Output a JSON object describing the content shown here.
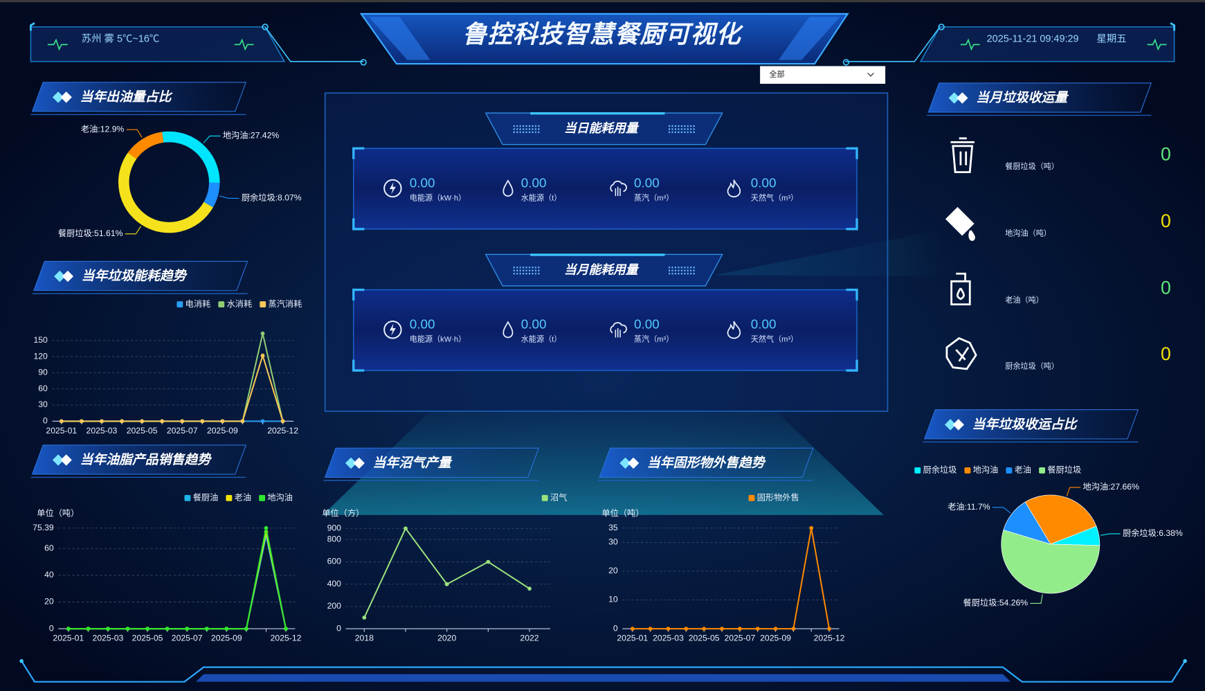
{
  "header": {
    "title": "鲁控科技智慧餐厨可视化",
    "weather": "苏州 雾 5℃~16℃",
    "datetime": "2025-11-21 09:49:29",
    "weekday": "星期五",
    "filter": "全部"
  },
  "energy": {
    "daily": {
      "title": "当日能耗用量",
      "items": [
        {
          "value": "0.00",
          "label": "电能源（kW·h）"
        },
        {
          "value": "0.00",
          "label": "水能源（t）"
        },
        {
          "value": "0.00",
          "label": "蒸汽（m³）"
        },
        {
          "value": "0.00",
          "label": "天然气（m³）"
        }
      ]
    },
    "monthly": {
      "title": "当月能耗用量",
      "items": [
        {
          "value": "0.00",
          "label": "电能源（kW·h）"
        },
        {
          "value": "0.00",
          "label": "水能源（t）"
        },
        {
          "value": "0.00",
          "label": "蒸汽（m³）"
        },
        {
          "value": "0.00",
          "label": "天然气（m³）"
        }
      ]
    }
  },
  "collection": {
    "title": "当月垃圾收运量",
    "items": [
      {
        "label": "餐厨垃圾（吨）",
        "value": 0
      },
      {
        "label": "地沟油（吨）",
        "value": 0
      },
      {
        "label": "老油（吨）",
        "value": 0
      },
      {
        "label": "厨余垃圾（吨）",
        "value": 0
      }
    ]
  },
  "chart_data": [
    {
      "type": "donut",
      "title": "当年出油量占比",
      "values": [
        27.42,
        8.07,
        51.61,
        12.9
      ],
      "value_labels": [
        "地沟油:27.42%",
        "厨余垃圾:8.07%",
        "餐厨垃圾:51.61%",
        "老油:12.9%"
      ],
      "colors": [
        "#00e5ff",
        "#1e8fff",
        "#f6e21c",
        "#ff8a00"
      ]
    },
    {
      "type": "line",
      "title": "当年垃圾能耗趋势",
      "categories": [
        "2025-01",
        null,
        "2025-03",
        null,
        "2025-05",
        null,
        "2025-07",
        null,
        "2025-09",
        null,
        null,
        "2025-12"
      ],
      "series": [
        {
          "name": "电消耗",
          "color": "#2a9df4",
          "values": [
            0,
            0,
            0,
            0,
            0,
            0,
            0,
            0,
            0,
            0,
            0,
            0
          ]
        },
        {
          "name": "水消耗",
          "color": "#91cc75",
          "values": [
            0,
            0,
            0,
            0,
            0,
            0,
            0,
            0,
            0,
            0,
            163,
            0
          ]
        },
        {
          "name": "蒸汽消耗",
          "color": "#fac858",
          "values": [
            0,
            0,
            0,
            0,
            0,
            0,
            0,
            0,
            0,
            0,
            122,
            0
          ]
        }
      ],
      "ylim": [
        0,
        165
      ],
      "yticks": [
        0,
        30,
        60,
        90,
        120,
        150
      ],
      "grid": true
    },
    {
      "type": "line",
      "title": "当年油脂产品销售趋势",
      "y_label": "单位（吨）",
      "categories": [
        "2025-01",
        null,
        "2025-03",
        null,
        "2025-05",
        null,
        "2025-07",
        null,
        "2025-09",
        null,
        null,
        "2025-12"
      ],
      "series": [
        {
          "name": "餐厨油",
          "color": "#1eb4e8",
          "values": [
            0,
            0,
            0,
            0,
            0,
            0,
            0,
            0,
            0,
            0,
            69.6,
            0
          ]
        },
        {
          "name": "老油",
          "color": "#f2e205",
          "values": [
            0,
            0,
            0,
            0,
            0,
            0,
            0,
            0,
            0,
            0,
            72.5,
            0
          ]
        },
        {
          "name": "地沟油",
          "color": "#2ee82e",
          "values": [
            0,
            0,
            0,
            0,
            0,
            0,
            0,
            0,
            0,
            0,
            75.39,
            0
          ]
        }
      ],
      "ylim": [
        0,
        75.39
      ],
      "yticks": [
        0,
        20,
        40,
        60,
        75.39
      ],
      "grid": true
    },
    {
      "type": "line",
      "title": "当年沼气产量",
      "y_label": "单位（方）",
      "categories": [
        "2018",
        null,
        "2020",
        null,
        "2022"
      ],
      "series": [
        {
          "name": "沼气",
          "color": "#9be27d",
          "values": [
            100,
            900,
            400,
            600,
            360
          ]
        }
      ],
      "ylim": [
        0,
        900
      ],
      "yticks": [
        0,
        200,
        400,
        600,
        800,
        900
      ],
      "grid": true
    },
    {
      "type": "line",
      "title": "当年固形物外售趋势",
      "y_label": "单位（吨）",
      "categories": [
        "2025-01",
        null,
        "2025-03",
        null,
        "2025-05",
        null,
        "2025-07",
        null,
        "2025-09",
        null,
        null,
        "2025-12"
      ],
      "series": [
        {
          "name": "固形物外售",
          "color": "#ff8a00",
          "values": [
            0,
            0,
            0,
            0,
            0,
            0,
            0,
            0,
            0,
            0,
            35,
            0
          ]
        }
      ],
      "ylim": [
        0,
        35
      ],
      "yticks": [
        0,
        10,
        20,
        30,
        35
      ],
      "grid": true
    },
    {
      "type": "pie",
      "title": "当年垃圾收运占比",
      "categories": [
        "厨余垃圾",
        "地沟油",
        "老油",
        "餐厨垃圾"
      ],
      "values": [
        6.38,
        27.66,
        11.7,
        54.26
      ],
      "value_labels": [
        "厨余垃圾:6.38%",
        "地沟油:27.66%",
        "老油:11.7%",
        "餐厨垃圾:54.26%"
      ],
      "colors": [
        "#00f0ff",
        "#ff8a00",
        "#1e8fff",
        "#93ec8a"
      ]
    }
  ]
}
